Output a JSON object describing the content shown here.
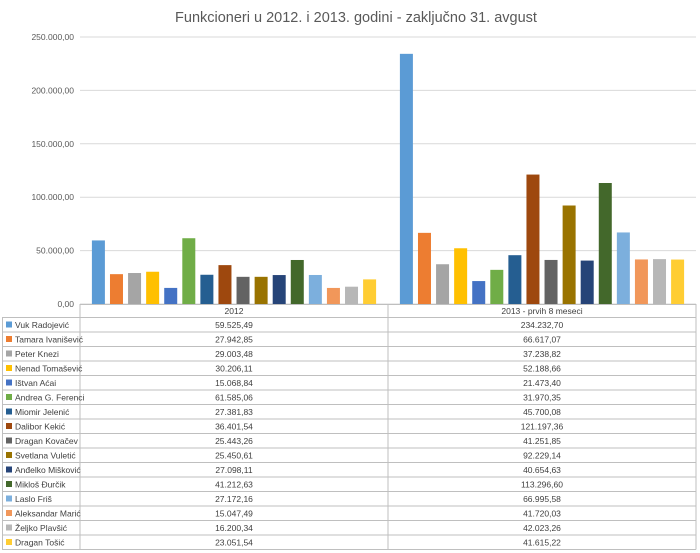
{
  "chart_data": {
    "type": "bar",
    "title": "Funkcioneri u 2012. i 2013. godini - zaključno 31. avgust",
    "categories": [
      "2012",
      "2013 - prvih 8 meseci"
    ],
    "ylim": [
      0,
      250000
    ],
    "yticks": [
      0,
      50000,
      100000,
      150000,
      200000,
      250000
    ],
    "ytick_labels": [
      "0,00",
      "50.000,00",
      "100.000,00",
      "150.000,00",
      "200.000,00",
      "250.000,00"
    ],
    "grid": true,
    "legend": "data-table",
    "series": [
      {
        "name": "Vuk Radojević",
        "color": "#5b9bd5",
        "values": [
          59525.49,
          234232.7
        ],
        "labels": [
          "59.525,49",
          "234.232,70"
        ]
      },
      {
        "name": "Tamara Ivanišević",
        "color": "#ed7d31",
        "values": [
          27942.85,
          66617.07
        ],
        "labels": [
          "27.942,85",
          "66.617,07"
        ]
      },
      {
        "name": "Peter Knezi",
        "color": "#a5a5a5",
        "values": [
          29003.48,
          37238.82
        ],
        "labels": [
          "29.003,48",
          "37.238,82"
        ]
      },
      {
        "name": "Nenad Tomašević",
        "color": "#ffc000",
        "values": [
          30206.11,
          52188.66
        ],
        "labels": [
          "30.206,11",
          "52.188,66"
        ]
      },
      {
        "name": "Ištvan Aćai",
        "color": "#4472c4",
        "values": [
          15068.84,
          21473.4
        ],
        "labels": [
          "15.068,84",
          "21.473,40"
        ]
      },
      {
        "name": "Andrea G. Ferenci",
        "color": "#70ad47",
        "values": [
          61585.06,
          31970.35
        ],
        "labels": [
          "61.585,06",
          "31.970,35"
        ]
      },
      {
        "name": "Miomir Jelenić",
        "color": "#255e91",
        "values": [
          27381.83,
          45700.08
        ],
        "labels": [
          "27.381,83",
          "45.700,08"
        ]
      },
      {
        "name": "Dalibor Kekić",
        "color": "#9e480e",
        "values": [
          36401.54,
          121197.36
        ],
        "labels": [
          "36.401,54",
          "121.197,36"
        ]
      },
      {
        "name": "Dragan Kovačev",
        "color": "#636363",
        "values": [
          25443.26,
          41251.85
        ],
        "labels": [
          "25.443,26",
          "41.251,85"
        ]
      },
      {
        "name": "Svetlana Vuletić",
        "color": "#997300",
        "values": [
          25450.61,
          92229.14
        ],
        "labels": [
          "25.450,61",
          "92.229,14"
        ]
      },
      {
        "name": "Anđelko Mišković",
        "color": "#264478",
        "values": [
          27098.11,
          40654.63
        ],
        "labels": [
          "27.098,11",
          "40.654,63"
        ]
      },
      {
        "name": "Mikloš Ðurčik",
        "color": "#43682b",
        "values": [
          41212.63,
          113296.6
        ],
        "labels": [
          "41.212,63",
          "113.296,60"
        ]
      },
      {
        "name": "Laslo Friš",
        "color": "#7cafdd",
        "values": [
          27172.16,
          66995.58
        ],
        "labels": [
          "27.172,16",
          "66.995,58"
        ]
      },
      {
        "name": "Aleksandar Marić",
        "color": "#f1975a",
        "values": [
          15047.49,
          41720.03
        ],
        "labels": [
          "15.047,49",
          "41.720,03"
        ]
      },
      {
        "name": "Željko Plavšić",
        "color": "#b7b7b7",
        "values": [
          16200.34,
          42023.26
        ],
        "labels": [
          "16.200,34",
          "42.023,26"
        ]
      },
      {
        "name": "Dragan Tošić",
        "color": "#ffcd33",
        "values": [
          23051.54,
          41615.22
        ],
        "labels": [
          "23.051,54",
          "41.615,22"
        ]
      }
    ]
  }
}
